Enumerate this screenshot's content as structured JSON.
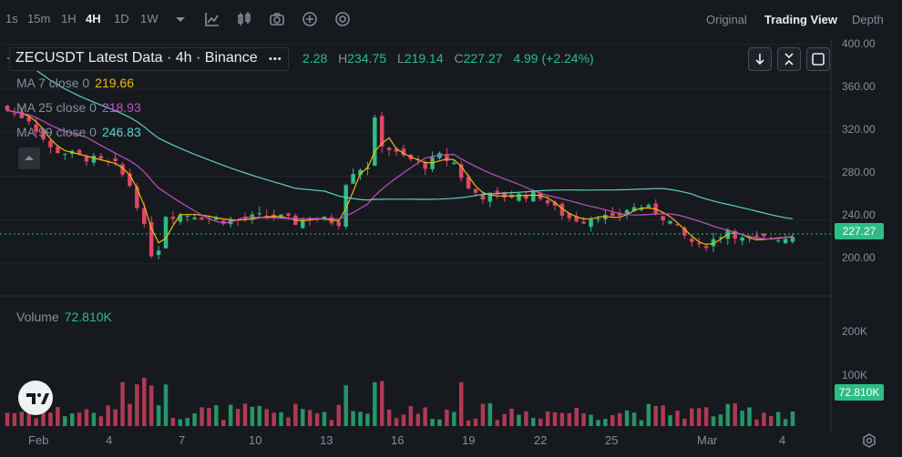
{
  "toolbar": {
    "timeframes": [
      {
        "label": "1s",
        "active": false
      },
      {
        "label": "15m",
        "active": false
      },
      {
        "label": "1H",
        "active": false
      },
      {
        "label": "4H",
        "active": true
      },
      {
        "label": "1D",
        "active": false
      },
      {
        "label": "1W",
        "active": false
      }
    ],
    "views": [
      {
        "label": "Original",
        "active": false
      },
      {
        "label": "Trading View",
        "active": true
      },
      {
        "label": "Depth",
        "active": false
      }
    ],
    "icons": [
      "chevron-down-icon",
      "chart-type-icon",
      "candles-icon",
      "camera-icon",
      "plus-circle-icon",
      "settings-icon"
    ]
  },
  "legend": {
    "symbol": "ZECUSDT Latest Data · 4h · Binance",
    "more": "•••",
    "ohlc_tail": "2.28",
    "high_label": "H",
    "high": "234.75",
    "low_label": "L",
    "low": "219.14",
    "close_label": "C",
    "close": "227.27",
    "change": "4.99 (+2.24%)",
    "ma7_label": "MA 7 close 0",
    "ma7": "219.66",
    "ma25_label": "MA 25 close 0",
    "ma25": "218.93",
    "ma99_label": "MA 99 close 0",
    "ma99": "246.83",
    "volume_label": "Volume",
    "volume": "72.810K"
  },
  "colors": {
    "up": "#2ebd85",
    "down": "#e04666",
    "ma7": "#f0b90b",
    "ma25": "#c050c8",
    "ma99": "#5fcfc8"
  },
  "price_axis": {
    "labels": [
      "400.00",
      "360.00",
      "320.00",
      "280.00",
      "240.00",
      "200.00"
    ],
    "current": "227.27"
  },
  "volume_axis": {
    "labels": [
      "200K",
      "100K"
    ],
    "current": "72.810K"
  },
  "x_axis": {
    "labels": [
      "Feb",
      "4",
      "7",
      "10",
      "13",
      "16",
      "19",
      "22",
      "25",
      "Mar",
      "4"
    ]
  },
  "chart_data": {
    "type": "candlestick",
    "price_range": [
      180,
      400
    ],
    "close_path": [
      [
        0,
        340
      ],
      [
        3,
        332
      ],
      [
        6,
        305
      ],
      [
        9,
        300
      ],
      [
        12,
        295
      ],
      [
        15,
        290
      ],
      [
        17,
        272
      ],
      [
        18,
        255
      ],
      [
        20,
        210
      ],
      [
        21,
        215
      ],
      [
        22,
        245
      ],
      [
        24,
        245
      ],
      [
        26,
        245
      ],
      [
        28,
        242
      ],
      [
        30,
        240
      ],
      [
        32,
        240
      ],
      [
        34,
        242
      ],
      [
        36,
        244
      ],
      [
        38,
        242
      ],
      [
        40,
        238
      ],
      [
        42,
        242
      ],
      [
        44,
        240
      ],
      [
        46,
        238
      ],
      [
        47,
        275
      ],
      [
        48,
        285
      ],
      [
        50,
        290
      ],
      [
        51,
        330
      ],
      [
        52,
        310
      ],
      [
        54,
        300
      ],
      [
        56,
        295
      ],
      [
        58,
        290
      ],
      [
        60,
        298
      ],
      [
        62,
        292
      ],
      [
        64,
        268
      ],
      [
        66,
        262
      ],
      [
        68,
        262
      ],
      [
        70,
        262
      ],
      [
        72,
        263
      ],
      [
        74,
        262
      ],
      [
        76,
        250
      ],
      [
        78,
        242
      ],
      [
        80,
        240
      ],
      [
        82,
        245
      ],
      [
        84,
        240
      ],
      [
        86,
        250
      ],
      [
        88,
        252
      ],
      [
        90,
        248
      ],
      [
        92,
        238
      ],
      [
        94,
        225
      ],
      [
        96,
        215
      ],
      [
        98,
        222
      ],
      [
        100,
        232
      ],
      [
        102,
        222
      ],
      [
        104,
        222
      ],
      [
        106,
        224
      ],
      [
        108,
        224
      ],
      [
        109,
        227.27
      ]
    ]
  }
}
